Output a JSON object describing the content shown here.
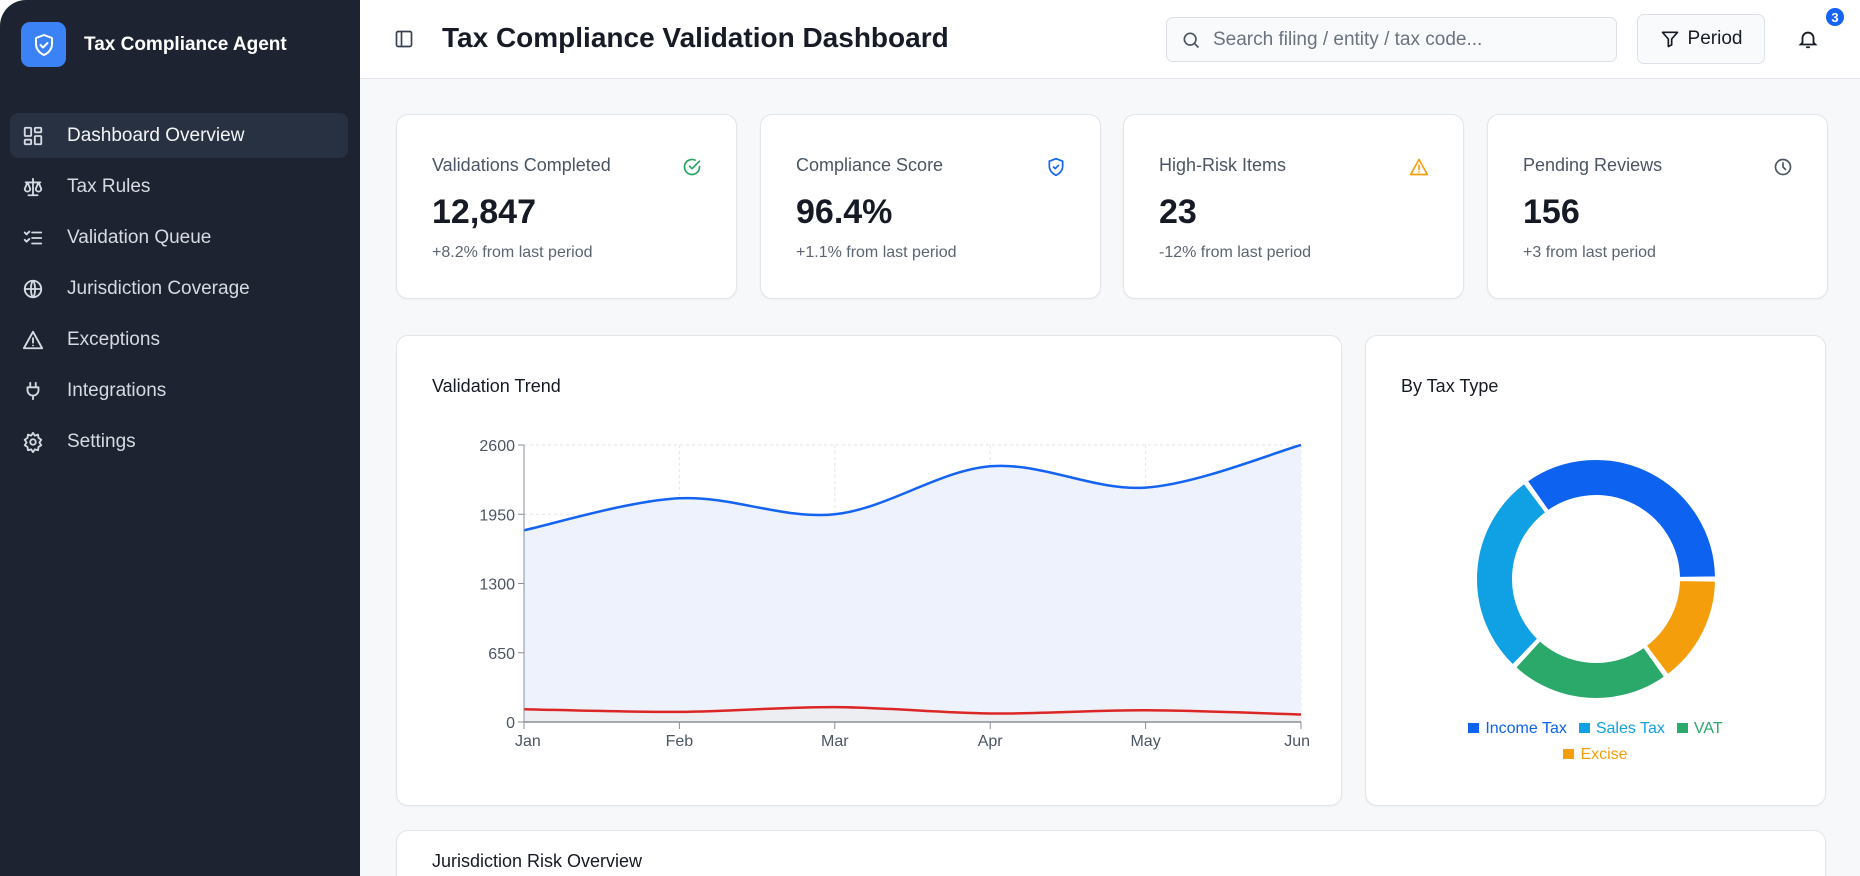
{
  "app": {
    "name": "Tax Compliance Agent"
  },
  "sidebar": {
    "items": [
      {
        "label": "Dashboard Overview",
        "icon": "dashboard-icon",
        "active": true
      },
      {
        "label": "Tax Rules",
        "icon": "scale-icon"
      },
      {
        "label": "Validation Queue",
        "icon": "list-check-icon"
      },
      {
        "label": "Jurisdiction Coverage",
        "icon": "globe-icon"
      },
      {
        "label": "Exceptions",
        "icon": "warning-icon"
      },
      {
        "label": "Integrations",
        "icon": "plug-icon"
      },
      {
        "label": "Settings",
        "icon": "gear-icon"
      }
    ]
  },
  "header": {
    "title": "Tax Compliance Validation Dashboard",
    "search_placeholder": "Search filing / entity / tax code...",
    "period_label": "Period",
    "notification_count": "3"
  },
  "stats": [
    {
      "label": "Validations Completed",
      "value": "12,847",
      "change": "+8.2% from last period",
      "icon": "check-circle-icon",
      "color": "#22a55b"
    },
    {
      "label": "Compliance Score",
      "value": "96.4%",
      "change": "+1.1% from last period",
      "icon": "shield-check-icon",
      "color": "#1463f3"
    },
    {
      "label": "High-Risk Items",
      "value": "23",
      "change": "-12% from last period",
      "icon": "warning-icon",
      "color": "#f59e0b"
    },
    {
      "label": "Pending Reviews",
      "value": "156",
      "change": "+3 from last period",
      "icon": "clock-icon",
      "color": "#4b5563"
    }
  ],
  "chart_data": [
    {
      "type": "area",
      "title": "Validation Trend",
      "categories": [
        "Jan",
        "Feb",
        "Mar",
        "Apr",
        "May",
        "Jun"
      ],
      "ylim": [
        0,
        2600
      ],
      "yticks": [
        0,
        650,
        1300,
        1950,
        2600
      ],
      "grid": true,
      "series": [
        {
          "values": [
            1800,
            2100,
            1950,
            2400,
            2200,
            2600
          ],
          "color": "#1463f3"
        },
        {
          "values": [
            120,
            95,
            140,
            80,
            110,
            70
          ],
          "color": "#dc2626"
        }
      ]
    },
    {
      "type": "pie",
      "title": "By Tax Type",
      "donut": true,
      "legend": "bottom",
      "categories": [
        "Income Tax",
        "Sales Tax",
        "VAT",
        "Excise"
      ],
      "values": [
        35,
        28,
        22,
        15
      ],
      "colors": [
        "#0d63f0",
        "#10a1e4",
        "#2aa96b",
        "#f59e0b"
      ]
    }
  ],
  "bottom_card": {
    "title": "Jurisdiction Risk Overview"
  }
}
